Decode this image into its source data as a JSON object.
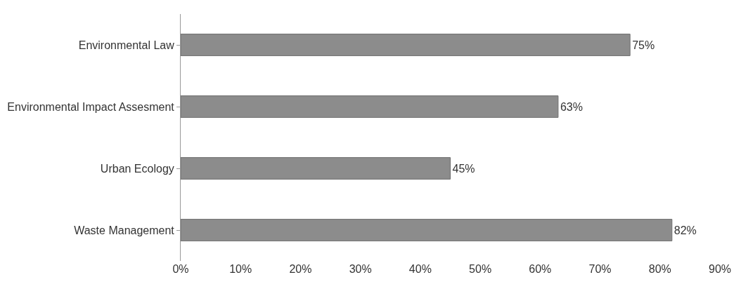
{
  "chart_data": {
    "type": "bar",
    "orientation": "horizontal",
    "categories": [
      "Environmental Law",
      "Environmental Impact Assesment",
      "Urban Ecology",
      "Waste Management"
    ],
    "values": [
      75,
      63,
      45,
      82
    ],
    "color": "#8c8c8c",
    "value_labels": [
      "75%",
      "63%",
      "45%",
      "82%"
    ],
    "xlim": [
      0,
      90
    ],
    "xticks": [
      {
        "value": 0,
        "label": "0%"
      },
      {
        "value": 10,
        "label": "10%"
      },
      {
        "value": 20,
        "label": "20%"
      },
      {
        "value": 30,
        "label": "30%"
      },
      {
        "value": 40,
        "label": "40%"
      },
      {
        "value": 50,
        "label": "50%"
      },
      {
        "value": 60,
        "label": "60%"
      },
      {
        "value": 70,
        "label": "70%"
      },
      {
        "value": 80,
        "label": "80%"
      },
      {
        "value": 90,
        "label": "90%"
      }
    ],
    "legend": false
  }
}
